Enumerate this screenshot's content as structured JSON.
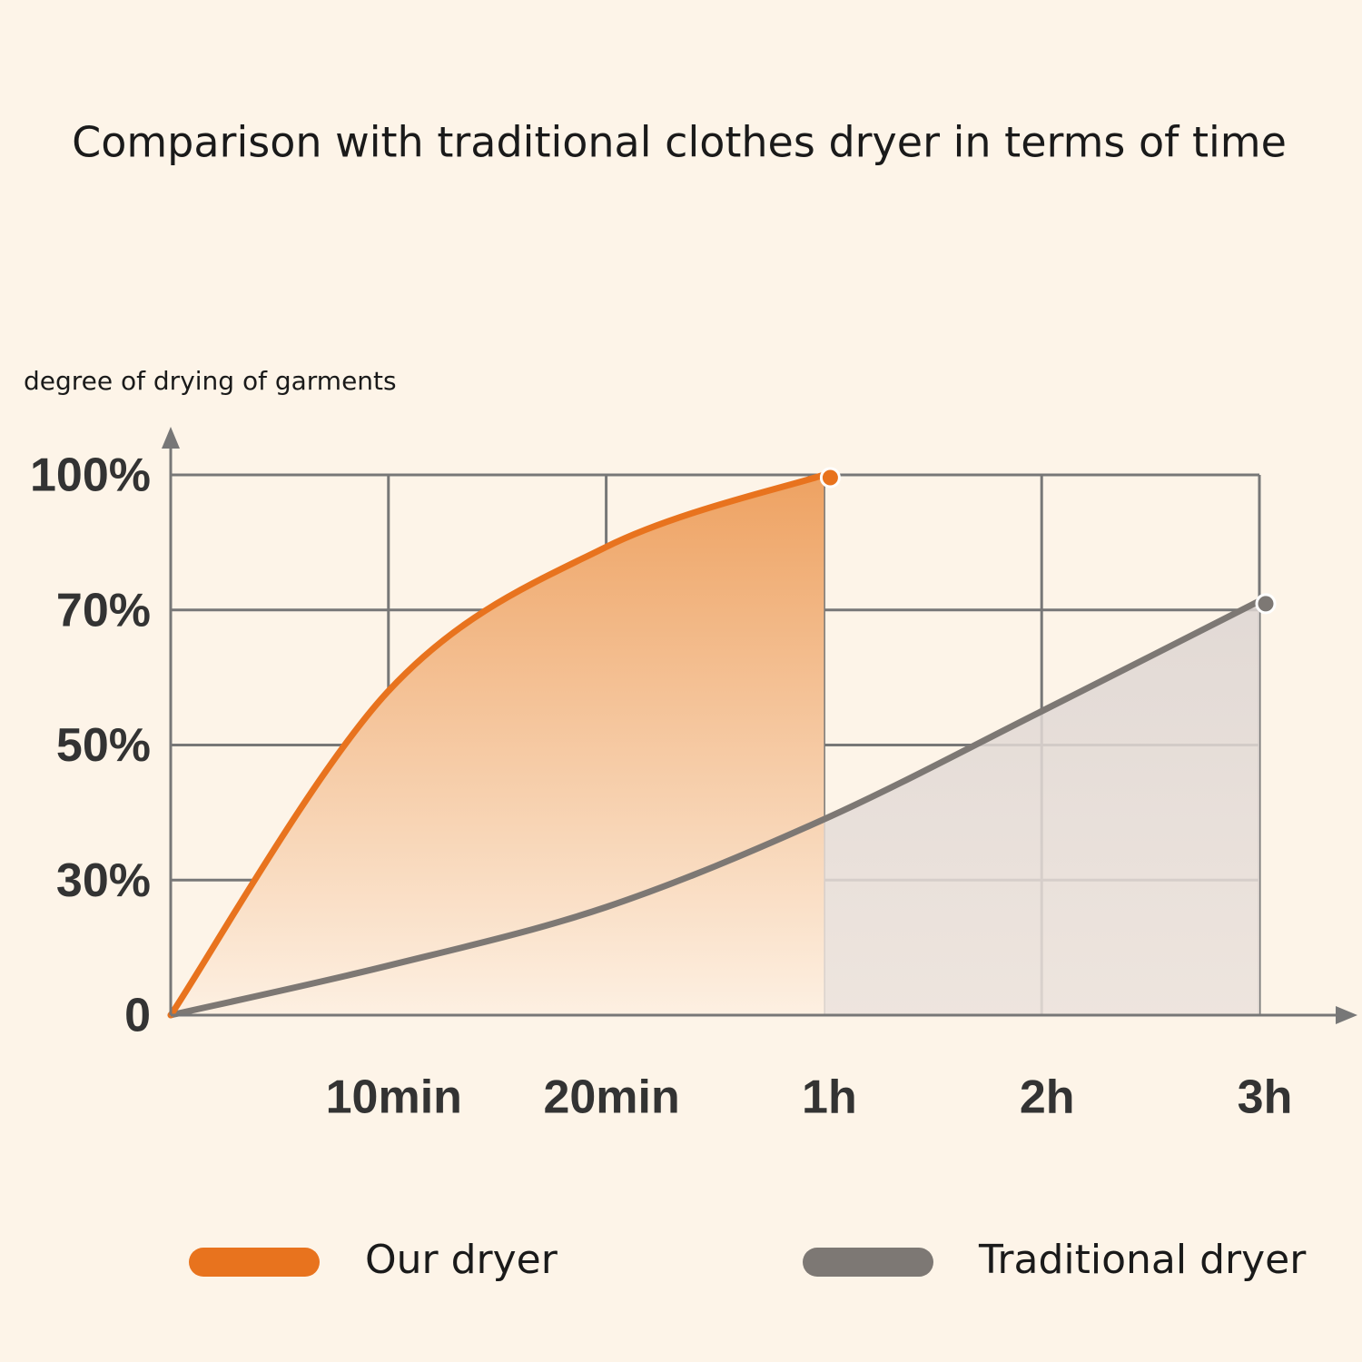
{
  "chart_data": {
    "type": "line",
    "title": "Comparison with traditional clothes dryer in terms of time",
    "y_label": "degree of drying of garments",
    "categories": [
      null,
      "10min",
      "20min",
      "1h",
      "2h",
      "3h"
    ],
    "series": [
      {
        "name": "Our dryer",
        "color": "#e8731e",
        "values": [
          0,
          58,
          84,
          100,
          null,
          null
        ]
      },
      {
        "name": "Traditional dryer",
        "color": "#7d7874",
        "values": [
          0,
          11,
          24,
          39,
          55,
          72
        ]
      }
    ],
    "ylim": [
      0,
      100
    ],
    "yticks": [
      0,
      {
        "value": 30,
        "label": "30%"
      },
      {
        "value": 50,
        "label": "50%"
      },
      {
        "value": 70,
        "label": "70%"
      },
      {
        "value": 100,
        "label": "100%"
      }
    ],
    "grid": true
  }
}
